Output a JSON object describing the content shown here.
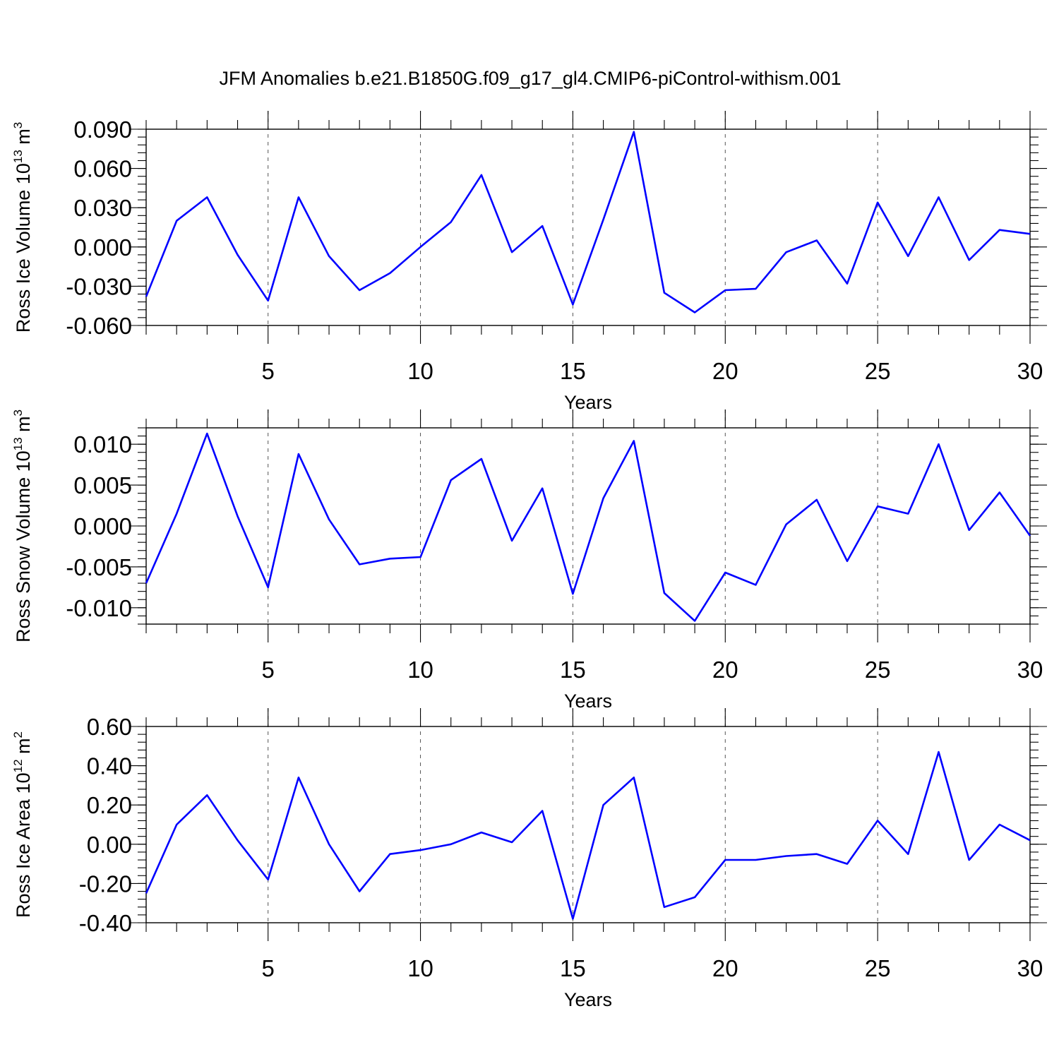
{
  "title": "JFM Anomalies b.e21.B1850G.f09_g17_gl4.CMIP6-piControl-withism.001",
  "chart_data": [
    {
      "type": "line",
      "xlabel": "Years",
      "ylabel": {
        "text": "Ross Ice Volume 10",
        "exponent": "13",
        "unit": " m",
        "unit_exponent": "3"
      },
      "xlim": [
        1,
        30
      ],
      "ylim": [
        -0.06,
        0.09
      ],
      "x_ticks": [
        5,
        10,
        15,
        20,
        25,
        30
      ],
      "x_tick_labels": [
        "5",
        "10",
        "15",
        "20",
        "25",
        "30"
      ],
      "y_ticks": [
        0.09,
        0.06,
        0.03,
        0.0,
        -0.03,
        -0.06
      ],
      "y_tick_labels": [
        "0.090",
        "0.060",
        "0.030",
        "0.000",
        "-0.030",
        "-0.060"
      ],
      "y_minor_step": 0.006,
      "vertical_gridlines": [
        5,
        10,
        15,
        20,
        25
      ],
      "line_color": "#0000ff",
      "x": [
        1,
        2,
        3,
        4,
        5,
        6,
        7,
        8,
        9,
        10,
        11,
        12,
        13,
        14,
        15,
        16,
        17,
        18,
        19,
        20,
        21,
        22,
        23,
        24,
        25,
        26,
        27,
        28,
        29,
        30
      ],
      "values": [
        -0.038,
        0.02,
        0.038,
        -0.006,
        -0.041,
        0.038,
        -0.007,
        -0.033,
        -0.02,
        0.0,
        0.019,
        0.055,
        -0.004,
        0.016,
        -0.044,
        0.021,
        0.088,
        -0.035,
        -0.05,
        -0.033,
        -0.032,
        -0.004,
        0.005,
        -0.028,
        0.034,
        -0.007,
        0.038,
        -0.01,
        0.013,
        0.01
      ]
    },
    {
      "type": "line",
      "xlabel": "Years",
      "ylabel": {
        "text": "Ross Snow Volume 10",
        "exponent": "13",
        "unit": " m",
        "unit_exponent": "3"
      },
      "xlim": [
        1,
        30
      ],
      "ylim": [
        -0.012,
        0.012
      ],
      "x_ticks": [
        5,
        10,
        15,
        20,
        25,
        30
      ],
      "x_tick_labels": [
        "5",
        "10",
        "15",
        "20",
        "25",
        "30"
      ],
      "y_ticks": [
        0.01,
        0.005,
        0.0,
        -0.005,
        -0.01
      ],
      "y_tick_labels": [
        "0.010",
        "0.005",
        "0.000",
        "-0.005",
        "-0.010"
      ],
      "y_minor_step": 0.001,
      "vertical_gridlines": [
        5,
        10,
        15,
        20,
        25
      ],
      "line_color": "#0000ff",
      "x": [
        1,
        2,
        3,
        4,
        5,
        6,
        7,
        8,
        9,
        10,
        11,
        12,
        13,
        14,
        15,
        16,
        17,
        18,
        19,
        20,
        21,
        22,
        23,
        24,
        25,
        26,
        27,
        28,
        29,
        30
      ],
      "values": [
        -0.007,
        0.0015,
        0.0113,
        0.0012,
        -0.0075,
        0.0088,
        0.0008,
        -0.0047,
        -0.004,
        -0.0038,
        0.0056,
        0.0082,
        -0.0018,
        0.0046,
        -0.0083,
        0.0034,
        0.0104,
        -0.0082,
        -0.0116,
        -0.0057,
        -0.0072,
        0.0002,
        0.0032,
        -0.0043,
        0.0024,
        0.0015,
        0.01,
        -0.0005,
        0.0041,
        -0.0012
      ]
    },
    {
      "type": "line",
      "xlabel": "Years",
      "ylabel": {
        "text": "Ross Ice Area 10",
        "exponent": "12",
        "unit": " m",
        "unit_exponent": "2"
      },
      "xlim": [
        1,
        30
      ],
      "ylim": [
        -0.4,
        0.6
      ],
      "x_ticks": [
        5,
        10,
        15,
        20,
        25,
        30
      ],
      "x_tick_labels": [
        "5",
        "10",
        "15",
        "20",
        "25",
        "30"
      ],
      "y_ticks": [
        0.6,
        0.4,
        0.2,
        0.0,
        -0.2,
        -0.4
      ],
      "y_tick_labels": [
        "0.60",
        "0.40",
        "0.20",
        "0.00",
        "-0.20",
        "-0.40"
      ],
      "y_minor_step": 0.04,
      "vertical_gridlines": [
        5,
        10,
        15,
        20,
        25
      ],
      "line_color": "#0000ff",
      "x": [
        1,
        2,
        3,
        4,
        5,
        6,
        7,
        8,
        9,
        10,
        11,
        12,
        13,
        14,
        15,
        16,
        17,
        18,
        19,
        20,
        21,
        22,
        23,
        24,
        25,
        26,
        27,
        28,
        29,
        30
      ],
      "values": [
        -0.25,
        0.1,
        0.25,
        0.02,
        -0.18,
        0.34,
        0.0,
        -0.24,
        -0.05,
        -0.03,
        0.0,
        0.06,
        0.01,
        0.17,
        -0.38,
        0.2,
        0.34,
        -0.32,
        -0.27,
        -0.08,
        -0.08,
        -0.06,
        -0.05,
        -0.1,
        0.12,
        -0.05,
        0.47,
        -0.08,
        0.1,
        0.02
      ]
    }
  ]
}
